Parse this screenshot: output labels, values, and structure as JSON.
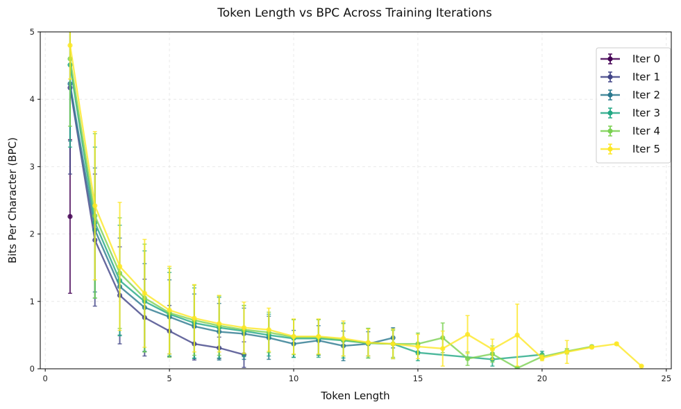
{
  "chart_data": {
    "type": "line",
    "title": "Token Length vs BPC Across Training Iterations",
    "xlabel": "Token Length",
    "ylabel": "Bits Per Character (BPC)",
    "xlim": [
      -0.2,
      25.2
    ],
    "ylim": [
      0,
      5
    ],
    "xticks": [
      0,
      5,
      10,
      15,
      20,
      25
    ],
    "yticks": [
      0,
      1,
      2,
      3,
      4,
      5
    ],
    "grid": true,
    "legend_position": "upper-right",
    "series": [
      {
        "name": "Iter 0",
        "color": "#440154",
        "x": [
          1
        ],
        "y": [
          2.26
        ],
        "err": [
          1.14
        ]
      },
      {
        "name": "Iter 1",
        "color": "#414487",
        "x": [
          1,
          2,
          3,
          4,
          5,
          6,
          7,
          8
        ],
        "y": [
          4.17,
          1.91,
          1.09,
          0.76,
          0.56,
          0.37,
          0.31,
          0.21
        ],
        "err": [
          1.28,
          0.98,
          0.72,
          0.57,
          0.38,
          0.24,
          0.16,
          0.19
        ]
      },
      {
        "name": "Iter 2",
        "color": "#2a788e",
        "x": [
          1,
          2,
          3,
          4,
          5,
          6,
          7,
          8,
          9,
          10,
          11,
          12,
          13,
          14
        ],
        "y": [
          4.23,
          2.06,
          1.22,
          0.91,
          0.77,
          0.63,
          0.55,
          0.52,
          0.46,
          0.37,
          0.42,
          0.34,
          0.37,
          0.46
        ],
        "err": [
          0.85,
          0.92,
          0.72,
          0.65,
          0.55,
          0.48,
          0.42,
          0.38,
          0.32,
          0.2,
          0.22,
          0.22,
          0.18,
          0.15
        ]
      },
      {
        "name": "Iter 3",
        "color": "#22a884",
        "x": [
          1,
          2,
          3,
          4,
          5,
          6,
          7,
          8,
          9,
          10,
          11,
          12,
          13,
          14,
          15,
          18,
          20
        ],
        "y": [
          4.51,
          2.17,
          1.31,
          1.0,
          0.81,
          0.68,
          0.61,
          0.56,
          0.5,
          0.45,
          0.45,
          0.42,
          0.38,
          0.37,
          0.24,
          0.14,
          0.21
        ],
        "err": [
          1.22,
          1.12,
          0.82,
          0.75,
          0.62,
          0.52,
          0.45,
          0.38,
          0.31,
          0.28,
          0.28,
          0.26,
          0.22,
          0.22,
          0.12,
          0.1,
          0.05
        ]
      },
      {
        "name": "Iter 4",
        "color": "#7ad151",
        "x": [
          1,
          2,
          3,
          4,
          5,
          6,
          7,
          8,
          9,
          10,
          11,
          12,
          13,
          14,
          15,
          16,
          17,
          18,
          19,
          20,
          21,
          22
        ],
        "y": [
          4.6,
          2.27,
          1.42,
          1.05,
          0.83,
          0.72,
          0.64,
          0.58,
          0.54,
          0.47,
          0.47,
          0.43,
          0.38,
          0.37,
          0.37,
          0.46,
          0.15,
          0.22,
          0.01,
          0.18,
          0.26,
          0.33
        ],
        "err": [
          1.0,
          1.22,
          0.82,
          0.8,
          0.66,
          0.52,
          0.44,
          0.36,
          0.3,
          0.26,
          0.26,
          0.24,
          0.22,
          0.2,
          0.16,
          0.22,
          0.1,
          0.12,
          0.02,
          0.04,
          0.04,
          0.02
        ]
      },
      {
        "name": "Iter 5",
        "color": "#fde725",
        "x": [
          1,
          2,
          3,
          4,
          5,
          6,
          7,
          8,
          9,
          10,
          11,
          12,
          13,
          14,
          15,
          16,
          17,
          18,
          19,
          20,
          21,
          22,
          23,
          24
        ],
        "y": [
          4.8,
          2.42,
          1.52,
          1.12,
          0.87,
          0.75,
          0.67,
          0.61,
          0.58,
          0.48,
          0.48,
          0.45,
          0.39,
          0.37,
          0.33,
          0.3,
          0.51,
          0.29,
          0.5,
          0.16,
          0.25,
          0.32,
          0.37,
          0.04
        ],
        "err": [
          0.5,
          1.1,
          0.95,
          0.8,
          0.65,
          0.5,
          0.42,
          0.38,
          0.32,
          0.26,
          0.26,
          0.26,
          0.2,
          0.22,
          0.18,
          0.26,
          0.28,
          0.15,
          0.46,
          0.04,
          0.17,
          0.02,
          0.02,
          0.01
        ]
      }
    ]
  }
}
